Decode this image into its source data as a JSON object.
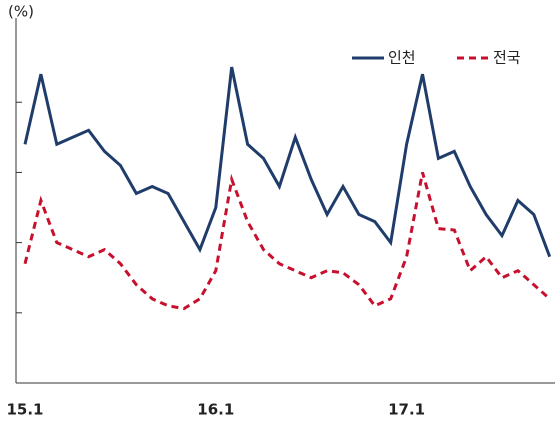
{
  "chart_data": {
    "type": "line",
    "y_label": "(%)",
    "categories": [
      "15.1",
      null,
      null,
      null,
      null,
      null,
      null,
      null,
      null,
      null,
      null,
      null,
      "16.1",
      null,
      null,
      null,
      null,
      null,
      null,
      null,
      null,
      null,
      null,
      null,
      "17.1",
      null,
      null,
      null,
      null,
      null,
      null,
      null,
      null,
      null
    ],
    "series": [
      {
        "name": "인천",
        "color": "#1f3c6b",
        "dash": false,
        "values": [
          3.4,
          4.4,
          3.4,
          3.5,
          3.6,
          3.3,
          3.1,
          2.7,
          2.8,
          2.7,
          2.3,
          1.9,
          2.5,
          4.5,
          3.4,
          3.2,
          2.8,
          3.5,
          2.9,
          2.4,
          2.8,
          2.4,
          2.3,
          2.0,
          3.4,
          4.4,
          3.2,
          3.3,
          2.8,
          2.4,
          2.1,
          2.6,
          2.4,
          1.8
        ]
      },
      {
        "name": "전국",
        "color": "#c8102e",
        "dash": true,
        "values": [
          1.7,
          2.6,
          2.0,
          1.9,
          1.8,
          1.9,
          1.7,
          1.4,
          1.2,
          1.1,
          1.06,
          1.2,
          1.6,
          2.9,
          2.3,
          1.9,
          1.7,
          1.6,
          1.5,
          1.6,
          1.57,
          1.4,
          1.1,
          1.2,
          1.8,
          3.0,
          2.2,
          2.18,
          1.6,
          1.8,
          1.5,
          1.6,
          1.4,
          1.2
        ]
      }
    ],
    "ylim": [
      0,
      5.2
    ],
    "yticks": [
      1,
      2,
      3,
      4
    ],
    "legend": "top-right"
  }
}
